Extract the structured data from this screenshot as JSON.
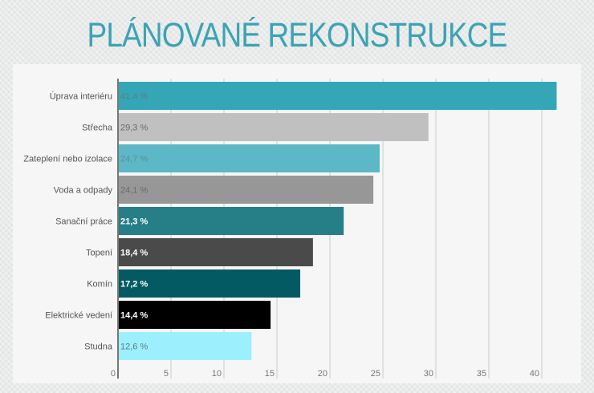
{
  "title": "PLÁNOVANÉ REKONSTRUKCE",
  "chart_data": {
    "type": "bar",
    "orientation": "horizontal",
    "title": "PLÁNOVANÉ REKONSTRUKCE",
    "categories": [
      "Úprava interiéru",
      "Střecha",
      "Zateplení nebo izolace",
      "Voda a odpady",
      "Sanační práce",
      "Topení",
      "Komín",
      "Elektrické vedení",
      "Studna"
    ],
    "values": [
      41.4,
      29.3,
      24.7,
      24.1,
      21.3,
      18.4,
      17.2,
      14.4,
      12.6
    ],
    "value_labels": [
      "41,4 %",
      "29,3 %",
      "24,7 %",
      "24,1 %",
      "21,3 %",
      "18,4 %",
      "17,2 %",
      "14,4 %",
      "12,6 %"
    ],
    "colors": [
      "#35a6b6",
      "#c0c0c0",
      "#5cb8c6",
      "#979797",
      "#267e87",
      "#4a4a4a",
      "#035a63",
      "#000000",
      "#9cf0fe"
    ],
    "label_colors": [
      "#5d7f84",
      "#6b6b6b",
      "#5d8e95",
      "#6b6b6b",
      "#ffffff",
      "#ffffff",
      "#ffffff",
      "#ffffff",
      "#5c7a80"
    ],
    "xlim": [
      0,
      42
    ],
    "xticks": [
      0,
      5,
      10,
      15,
      20,
      25,
      30,
      35,
      40
    ],
    "xtick_labels": [
      "0",
      "5",
      "10",
      "15",
      "20",
      "25",
      "30",
      "35",
      "40"
    ],
    "grid": true,
    "xlabel": "",
    "ylabel": ""
  }
}
